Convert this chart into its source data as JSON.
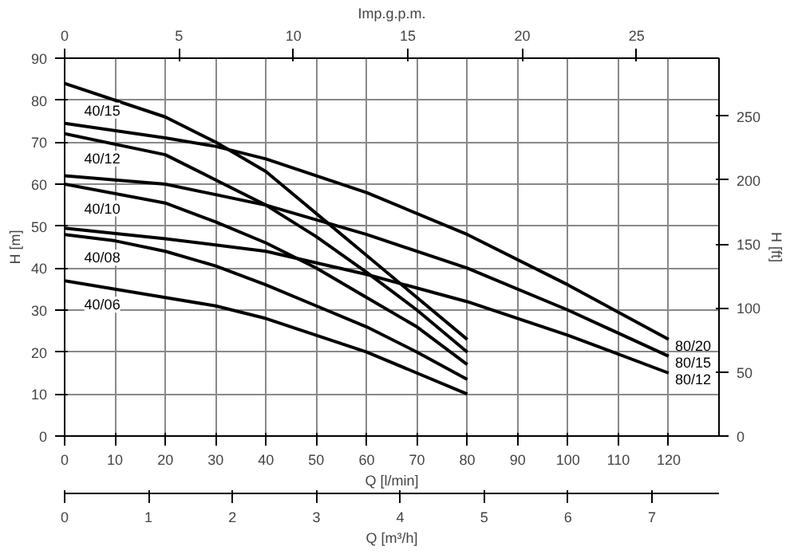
{
  "chart_data": {
    "type": "line",
    "xlabel": "Q [l/min]",
    "ylabel": "H [m]",
    "y2label": "H [ft]",
    "x2label": "Imp.g.p.m.",
    "annotations": [
      "Q [m³/h]",
      "0",
      "1",
      "2",
      "3",
      "4",
      "5",
      "6",
      "7"
    ],
    "xlim": [
      0,
      130
    ],
    "xticks": [
      0,
      10,
      20,
      30,
      40,
      50,
      60,
      70,
      80,
      90,
      100,
      110,
      120
    ],
    "ylim": [
      0,
      90
    ],
    "yticks": [
      0,
      10,
      20,
      30,
      40,
      50,
      60,
      70,
      80,
      90
    ],
    "y2lim": [
      0,
      295.3
    ],
    "y2ticks": [
      0,
      50,
      100,
      150,
      200,
      250
    ],
    "x2lim": [
      0,
      28.6
    ],
    "x2ticks": [
      0,
      5,
      10,
      15,
      20,
      25
    ],
    "grid": true,
    "line_style": "solid",
    "series": [
      {
        "name": "40/15",
        "color": "#000000",
        "x": [
          0,
          20,
          30,
          40,
          50,
          60,
          70,
          80
        ],
        "values": [
          84,
          76,
          70,
          63,
          53,
          43,
          33,
          23
        ]
      },
      {
        "name": "40/12",
        "color": "#000000",
        "x": [
          0,
          20,
          30,
          40,
          50,
          60,
          70,
          80
        ],
        "values": [
          72,
          67,
          61,
          55,
          47.5,
          39,
          30,
          20
        ]
      },
      {
        "name": "40/10",
        "color": "#000000",
        "x": [
          0,
          20,
          30,
          40,
          50,
          60,
          70,
          80
        ],
        "values": [
          60,
          55.5,
          51,
          46,
          40,
          33,
          26,
          17
        ]
      },
      {
        "name": "40/08",
        "color": "#000000",
        "x": [
          0,
          10,
          20,
          30,
          40,
          50,
          60,
          70,
          80
        ],
        "values": [
          48,
          46.5,
          44,
          40.5,
          36,
          31,
          26,
          20,
          13.5
        ]
      },
      {
        "name": "40/06",
        "color": "#000000",
        "x": [
          0,
          20,
          30,
          40,
          50,
          60,
          70,
          80
        ],
        "values": [
          37,
          33,
          31,
          28,
          24,
          20,
          15,
          10
        ]
      },
      {
        "name": "80/20",
        "color": "#000000",
        "x": [
          0,
          20,
          30,
          40,
          60,
          80,
          100,
          120
        ],
        "values": [
          74.5,
          71,
          69,
          66,
          58,
          48,
          36,
          23
        ]
      },
      {
        "name": "80/15",
        "color": "#000000",
        "x": [
          0,
          20,
          40,
          60,
          80,
          100,
          120
        ],
        "values": [
          62,
          60,
          55,
          48,
          40,
          30,
          19
        ]
      },
      {
        "name": "80/12",
        "color": "#000000",
        "x": [
          0,
          20,
          40,
          60,
          80,
          100,
          120
        ],
        "values": [
          49.5,
          47,
          44,
          38.5,
          32,
          24,
          15
        ]
      }
    ]
  }
}
